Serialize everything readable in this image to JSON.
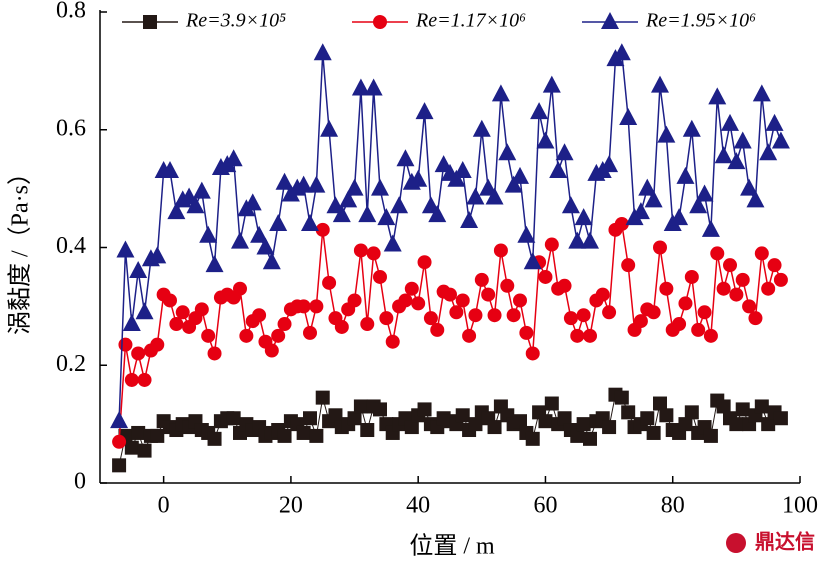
{
  "chart_data": {
    "type": "line",
    "xlabel": "位置 / m",
    "ylabel": "涡黏度 /（Pa·s）",
    "watermark": "鼎达信",
    "xlim": [
      -10,
      100
    ],
    "xticks": [
      0,
      20,
      40,
      60,
      80,
      100
    ],
    "ylim": [
      0,
      0.8
    ],
    "yticks": [
      0,
      0.2,
      0.4,
      0.6,
      0.8
    ],
    "x": [
      -7,
      -6,
      -5,
      -4,
      -3,
      -2,
      -1,
      0,
      1,
      2,
      3,
      4,
      5,
      6,
      7,
      8,
      9,
      10,
      11,
      12,
      13,
      14,
      15,
      16,
      17,
      18,
      19,
      20,
      21,
      22,
      23,
      24,
      25,
      26,
      27,
      28,
      29,
      30,
      31,
      32,
      33,
      34,
      35,
      36,
      37,
      38,
      39,
      40,
      41,
      42,
      43,
      44,
      45,
      46,
      47,
      48,
      49,
      50,
      51,
      52,
      53,
      54,
      55,
      56,
      57,
      58,
      59,
      60,
      61,
      62,
      63,
      64,
      65,
      66,
      67,
      68,
      69,
      70,
      71,
      72,
      73,
      74,
      75,
      76,
      77,
      78,
      79,
      80,
      81,
      82,
      83,
      84,
      85,
      86,
      87,
      88,
      89,
      90,
      91,
      92,
      93,
      94,
      95,
      96,
      97
    ],
    "series": [
      {
        "name": "Re=3.9×10⁵",
        "color": "#231815",
        "marker": "square",
        "values": [
          0.03,
          0.08,
          0.06,
          0.085,
          0.055,
          0.08,
          0.08,
          0.105,
          0.095,
          0.09,
          0.1,
          0.095,
          0.105,
          0.09,
          0.085,
          0.075,
          0.105,
          0.11,
          0.11,
          0.085,
          0.1,
          0.09,
          0.095,
          0.08,
          0.085,
          0.09,
          0.08,
          0.105,
          0.1,
          0.085,
          0.11,
          0.08,
          0.145,
          0.105,
          0.115,
          0.095,
          0.1,
          0.11,
          0.13,
          0.09,
          0.13,
          0.125,
          0.1,
          0.085,
          0.1,
          0.11,
          0.095,
          0.115,
          0.125,
          0.1,
          0.095,
          0.11,
          0.105,
          0.1,
          0.115,
          0.09,
          0.1,
          0.12,
          0.11,
          0.095,
          0.13,
          0.115,
          0.1,
          0.105,
          0.085,
          0.075,
          0.12,
          0.105,
          0.135,
          0.1,
          0.11,
          0.09,
          0.08,
          0.1,
          0.075,
          0.105,
          0.11,
          0.095,
          0.15,
          0.145,
          0.12,
          0.095,
          0.1,
          0.11,
          0.085,
          0.135,
          0.115,
          0.09,
          0.085,
          0.1,
          0.12,
          0.085,
          0.095,
          0.08,
          0.14,
          0.13,
          0.11,
          0.1,
          0.125,
          0.1,
          0.115,
          0.13,
          0.1,
          0.12,
          0.11
        ]
      },
      {
        "name": "Re=1.17×10⁶",
        "color": "#e60012",
        "marker": "circle",
        "values": [
          0.07,
          0.235,
          0.175,
          0.22,
          0.175,
          0.225,
          0.235,
          0.32,
          0.31,
          0.27,
          0.29,
          0.265,
          0.28,
          0.295,
          0.25,
          0.22,
          0.315,
          0.32,
          0.315,
          0.33,
          0.25,
          0.275,
          0.285,
          0.24,
          0.225,
          0.25,
          0.27,
          0.295,
          0.3,
          0.3,
          0.255,
          0.3,
          0.43,
          0.34,
          0.28,
          0.265,
          0.295,
          0.31,
          0.395,
          0.27,
          0.39,
          0.35,
          0.28,
          0.24,
          0.3,
          0.31,
          0.33,
          0.305,
          0.375,
          0.28,
          0.26,
          0.325,
          0.32,
          0.29,
          0.31,
          0.25,
          0.285,
          0.345,
          0.32,
          0.285,
          0.395,
          0.335,
          0.285,
          0.31,
          0.255,
          0.22,
          0.375,
          0.35,
          0.405,
          0.33,
          0.335,
          0.28,
          0.25,
          0.285,
          0.25,
          0.31,
          0.32,
          0.29,
          0.43,
          0.44,
          0.37,
          0.26,
          0.275,
          0.295,
          0.29,
          0.4,
          0.33,
          0.26,
          0.27,
          0.305,
          0.35,
          0.26,
          0.29,
          0.25,
          0.39,
          0.33,
          0.37,
          0.32,
          0.345,
          0.3,
          0.28,
          0.39,
          0.33,
          0.37,
          0.345
        ]
      },
      {
        "name": "Re=1.95×10⁶",
        "color": "#1d2088",
        "marker": "triangle",
        "values": [
          0.105,
          0.395,
          0.27,
          0.36,
          0.29,
          0.38,
          0.385,
          0.53,
          0.53,
          0.46,
          0.48,
          0.485,
          0.47,
          0.495,
          0.42,
          0.37,
          0.535,
          0.54,
          0.55,
          0.41,
          0.465,
          0.475,
          0.42,
          0.4,
          0.375,
          0.44,
          0.51,
          0.49,
          0.5,
          0.505,
          0.44,
          0.505,
          0.73,
          0.6,
          0.47,
          0.455,
          0.48,
          0.5,
          0.67,
          0.455,
          0.67,
          0.5,
          0.45,
          0.405,
          0.47,
          0.55,
          0.51,
          0.515,
          0.63,
          0.47,
          0.455,
          0.54,
          0.525,
          0.515,
          0.53,
          0.445,
          0.485,
          0.6,
          0.5,
          0.485,
          0.66,
          0.56,
          0.505,
          0.52,
          0.42,
          0.375,
          0.63,
          0.58,
          0.675,
          0.53,
          0.56,
          0.47,
          0.41,
          0.45,
          0.41,
          0.525,
          0.53,
          0.54,
          0.72,
          0.73,
          0.62,
          0.45,
          0.46,
          0.5,
          0.48,
          0.675,
          0.59,
          0.44,
          0.45,
          0.52,
          0.6,
          0.47,
          0.49,
          0.43,
          0.655,
          0.555,
          0.61,
          0.545,
          0.58,
          0.5,
          0.48,
          0.66,
          0.56,
          0.61,
          0.58
        ]
      }
    ]
  }
}
